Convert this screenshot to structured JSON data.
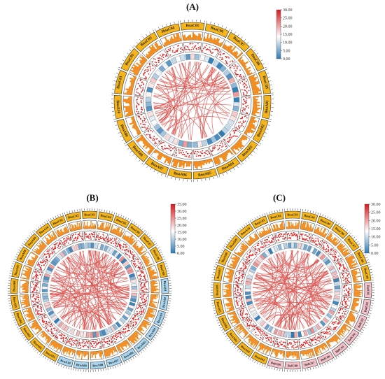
{
  "colors": {
    "chrom_fill": "#f4b41a",
    "chrom_fill_alt_b": "#a9d6ee",
    "chrom_fill_alt_c": "#f3c1c9",
    "density_fill": "#f08a1c",
    "scatter_fill": "#e02424",
    "link": "#d9534f",
    "heat_low": "#2c7bb6",
    "heat_mid": "#ffffff",
    "heat_high": "#d7191c"
  },
  "panels": [
    {
      "label": "(A)",
      "chromosomes": [
        "BnaC05",
        "BnaC06",
        "BnaC07",
        "BnaC08",
        "BnaC09",
        "BnaA01",
        "BnaA02",
        "BnaA03",
        "BnaA04",
        "BnaA05",
        "BnaA06",
        "BnaA07",
        "BnaA08",
        "BnaA09",
        "BnaA10",
        "BnaC01",
        "BnaC02",
        "BnaC03",
        "BnaC04"
      ],
      "scale": {
        "max": "30.00",
        "ticks": [
          "30.00",
          "25.00",
          "20.00",
          "15.00",
          "10.00",
          "5.00",
          "0.00"
        ]
      }
    },
    {
      "label": "(B)",
      "chromosomes": [
        "BnaC03",
        "BnaC04",
        "BnaC05",
        "BnaC06",
        "BnaC07",
        "BnaC08",
        "BnaC09",
        "BraA01",
        "BraA02",
        "BraA03",
        "BraA04",
        "BraA05",
        "BraA06",
        "BraA07",
        "BraA08",
        "BraA09",
        "BraA10",
        "BnaA01",
        "BnaA02",
        "BnaA03",
        "BnaA04",
        "BnaA05",
        "BnaA06",
        "BnaA07",
        "BnaA08",
        "BnaA09",
        "BnaA10",
        "BnaC01",
        "BnaC02"
      ],
      "scale": {
        "max": "35.00",
        "ticks": [
          "35.00",
          "30.00",
          "25.00",
          "20.00",
          "15.00",
          "10.00",
          "5.00",
          "0.00"
        ]
      }
    },
    {
      "label": "(C)",
      "chromosomes": [
        "BnaC03",
        "BnaC04",
        "BnaC05",
        "BnaC06",
        "BnaC07",
        "BnaC08",
        "BnaC09",
        "BolC01",
        "BolC02",
        "BolC03",
        "BolC04",
        "BolC05",
        "BolC06",
        "BolC07",
        "BolC08",
        "BolC09",
        "BnaA01",
        "BnaA02",
        "BnaA03",
        "BnaA04",
        "BnaA05",
        "BnaA06",
        "BnaA07",
        "BnaA08",
        "BnaA09",
        "BnaA10",
        "BnaC01",
        "BnaC02"
      ],
      "scale": {
        "max": "30.00",
        "ticks": [
          "30.00",
          "25.00",
          "20.00",
          "15.00",
          "10.00",
          "5.00",
          "0.00"
        ]
      }
    }
  ]
}
